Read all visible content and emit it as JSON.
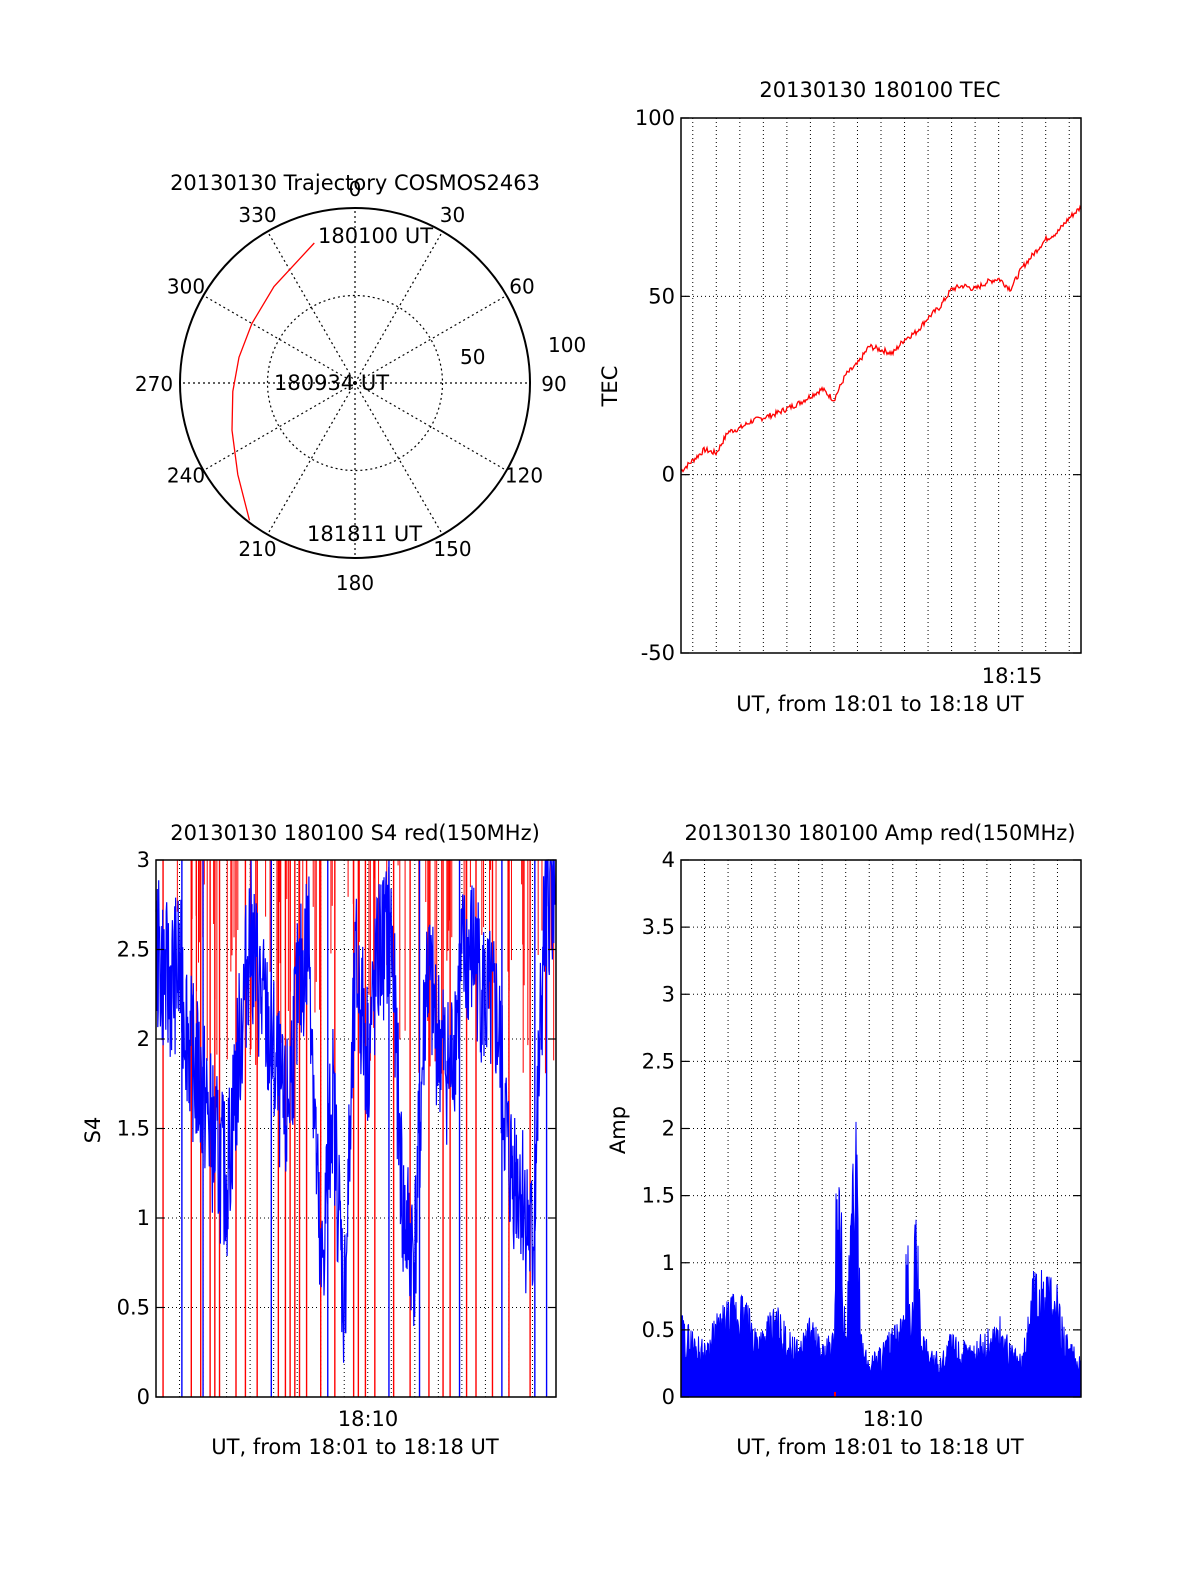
{
  "colors": {
    "red": "#ff0000",
    "blue": "#0000ff",
    "axis": "#000000"
  },
  "chart_data": [
    {
      "id": "trajectory",
      "type": "polar",
      "title": "20130130 Trajectory COSMOS2463",
      "angle_labels": [
        "0",
        "30",
        "60",
        "90",
        "120",
        "150",
        "180",
        "210",
        "240",
        "270",
        "300",
        "330"
      ],
      "angles": [
        0,
        30,
        60,
        90,
        120,
        150,
        180,
        210,
        240,
        270,
        300,
        330
      ],
      "radial_max": 100,
      "radial_labels": [
        {
          "value": 50,
          "label": "50"
        },
        {
          "value": 100,
          "label": "100"
        }
      ],
      "series": [
        {
          "color": "red",
          "points": [
            {
              "az": 343.8,
              "r": 83.3
            },
            {
              "az": 320.0,
              "r": 72.0
            },
            {
              "az": 300.0,
              "r": 68.0
            },
            {
              "az": 282.5,
              "r": 67.9
            },
            {
              "az": 266.0,
              "r": 70.0
            },
            {
              "az": 249.0,
              "r": 75.3
            },
            {
              "az": 232.0,
              "r": 85.0
            },
            {
              "az": 217.5,
              "r": 99.0
            }
          ]
        }
      ],
      "annotations": [
        {
          "label": "180100 UT",
          "az": 343.8,
          "r": 83.3
        },
        {
          "label": "180934 UT",
          "az": 270.0,
          "r": 0
        },
        {
          "label": "181811 UT",
          "az": 217.5,
          "r": 99.0
        }
      ]
    },
    {
      "id": "tec",
      "type": "line",
      "title": "20130130 180100 TEC",
      "ylabel": "TEC",
      "xlabel": "UT, from 18:01 to 18:18 UT",
      "x_range_minutes": [
        18.01,
        18.307
      ],
      "ylim": [
        -50,
        100
      ],
      "yticks": [
        -50,
        0,
        50,
        100
      ],
      "xticks": [
        {
          "label": "18:15",
          "pos": 15
        }
      ],
      "x_gridlines_minutes": [
        1.5,
        2.5,
        3.5,
        4.5,
        5.5,
        6.5,
        7.5,
        8.5,
        9.5,
        10.5,
        11.5,
        12.5,
        13.5,
        14.5,
        15.5,
        16.5,
        17.5
      ],
      "grid": true,
      "series": [
        {
          "color": "red",
          "x_minutes": [
            1.0,
            1.5,
            2.0,
            2.5,
            3.0,
            3.5,
            4.0,
            5.0,
            6.0,
            7.0,
            7.5,
            8.0,
            8.5,
            9.0,
            9.5,
            10.0,
            10.5,
            11.0,
            11.5,
            12.0,
            12.5,
            13.0,
            13.5,
            14.0,
            14.5,
            15.0,
            15.5,
            16.0,
            16.5,
            17.0,
            17.5,
            18.0
          ],
          "y": [
            1,
            4,
            7,
            6,
            12,
            13,
            15,
            17,
            20,
            24,
            21,
            28,
            31,
            36,
            35,
            34,
            38,
            40,
            44,
            47,
            52,
            53,
            52,
            54,
            55,
            52,
            58,
            62,
            66,
            68,
            72,
            75
          ]
        }
      ]
    },
    {
      "id": "s4",
      "type": "line",
      "title": "20130130 180100 S4 red(150MHz)",
      "ylabel": "S4",
      "xlabel": "UT, from 18:01 to 18:18 UT",
      "x_range_minutes": [
        1,
        18
      ],
      "ylim": [
        0,
        3
      ],
      "yticks": [
        0,
        0.5,
        1,
        1.5,
        2,
        2.5,
        3
      ],
      "xticks": [
        {
          "label": "18:10",
          "pos": 10
        }
      ],
      "grid": true,
      "series": [
        {
          "color": "blue",
          "x_minutes": [
            1.0,
            1.5,
            2.0,
            2.5,
            3.0,
            3.5,
            4.0,
            4.5,
            5.0,
            5.5,
            6.0,
            6.5,
            7.0,
            7.5,
            8.0,
            8.5,
            9.0,
            9.5,
            10.0,
            10.5,
            11.0,
            11.5,
            12.0,
            12.5,
            13.0,
            13.5,
            14.0,
            14.5,
            15.0,
            15.5,
            16.0,
            16.5,
            17.0,
            17.5,
            18.0
          ],
          "y": [
            2.5,
            2.3,
            2.4,
            1.9,
            1.7,
            1.4,
            1.2,
            1.9,
            2.6,
            2.2,
            1.9,
            1.5,
            2.2,
            2.6,
            0.6,
            1.7,
            0.5,
            2.4,
            1.9,
            2.5,
            2.6,
            1.0,
            0.8,
            2.4,
            2.0,
            1.8,
            2.4,
            2.5,
            2.2,
            2.1,
            1.3,
            1.2,
            0.8,
            2.6,
            3.0
          ]
        }
      ],
      "red_spikes_minutes": [
        1.3,
        2.5,
        2.9,
        3.3,
        3.5,
        3.7,
        4.4,
        4.8,
        5.3,
        6.2,
        6.5,
        6.7,
        6.9,
        7.1,
        7.4,
        8.0,
        8.6,
        9.4,
        9.6,
        9.9,
        10.3,
        11.1,
        11.8,
        12.6,
        13.2,
        13.5,
        14.2,
        14.6,
        15.3,
        16.0,
        16.9
      ],
      "blue_spikes_minutes": [
        2.1,
        3.0,
        5.9,
        8.3,
        10.9,
        12.2,
        13.9,
        15.7,
        17.1,
        17.6
      ]
    },
    {
      "id": "amp",
      "type": "line",
      "title": "20130130 180100 Amp red(150MHz)",
      "ylabel": "Amp",
      "xlabel": "UT, from 18:01 to 18:18 UT",
      "x_range_minutes": [
        1,
        18
      ],
      "ylim": [
        0,
        4
      ],
      "yticks": [
        0,
        0.5,
        1,
        1.5,
        2,
        2.5,
        3,
        3.5,
        4
      ],
      "xticks": [
        {
          "label": "18:10",
          "pos": 10
        }
      ],
      "grid": true,
      "series": [
        {
          "color": "blue",
          "x_minutes": [
            1.0,
            1.5,
            2.0,
            2.5,
            3.0,
            3.5,
            4.0,
            4.5,
            5.0,
            5.5,
            6.0,
            6.5,
            7.0,
            7.5,
            7.6,
            7.8,
            8.0,
            8.4,
            8.5,
            8.7,
            9.0,
            9.5,
            10.0,
            10.5,
            10.6,
            10.8,
            11.0,
            11.2,
            11.3,
            11.5,
            12.0,
            12.5,
            13.0,
            13.5,
            14.0,
            14.5,
            15.0,
            15.5,
            16.0,
            16.5,
            17.0,
            17.5,
            18.0
          ],
          "y": [
            0.6,
            0.5,
            0.4,
            0.6,
            0.7,
            0.8,
            0.6,
            0.5,
            0.7,
            0.5,
            0.4,
            0.6,
            0.4,
            0.5,
            1.8,
            1.5,
            0.4,
            2.2,
            1.6,
            0.4,
            0.3,
            0.4,
            0.5,
            0.6,
            1.3,
            0.5,
            1.6,
            0.4,
            0.5,
            0.4,
            0.3,
            0.5,
            0.4,
            0.4,
            0.5,
            0.6,
            0.4,
            0.3,
            1.0,
            0.9,
            0.8,
            0.4,
            0.3
          ]
        }
      ]
    }
  ]
}
